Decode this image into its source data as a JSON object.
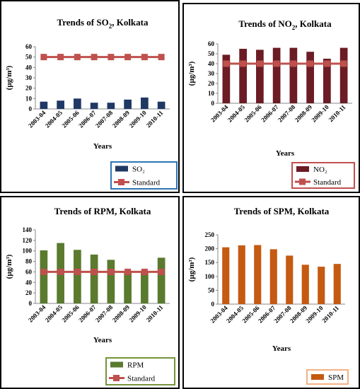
{
  "chart_data": [
    {
      "type": "bar",
      "title": "Trends of SO",
      "title_sub": "2",
      "title_suffix": ", Kolkata",
      "xlabel": "Years",
      "ylabel": "(µg/m³)",
      "ylim": [
        0,
        60
      ],
      "yticks": [
        0,
        10,
        20,
        30,
        40,
        50,
        60
      ],
      "categories": [
        "2003-04",
        "2004-05",
        "2005-06",
        "2006-07",
        "2007-08",
        "2008-09",
        "2009-10",
        "2010-11"
      ],
      "series": [
        {
          "name": "SO₂",
          "kind": "bar",
          "color": "#1f3864",
          "values": [
            7,
            8,
            10,
            6,
            6,
            9,
            11,
            7
          ]
        },
        {
          "name": "Standard",
          "kind": "line",
          "color": "#c0504d",
          "values": [
            50,
            50,
            50,
            50,
            50,
            50,
            50,
            50
          ]
        }
      ],
      "legend_border": "#2e75b6",
      "legend_position": "bottom-right",
      "grid": false
    },
    {
      "type": "bar",
      "title": "Trends of NO",
      "title_sub": "2",
      "title_suffix": ", Kolkata",
      "xlabel": "Years",
      "ylabel": "(µg/m³)",
      "ylim": [
        0,
        60
      ],
      "yticks": [
        0,
        10,
        20,
        30,
        40,
        50,
        60
      ],
      "categories": [
        "2003-04",
        "2004-05",
        "2005-06",
        "2006-07",
        "2007-08",
        "2008-09",
        "2009-10",
        "2010-11"
      ],
      "series": [
        {
          "name": "NO₂",
          "kind": "bar",
          "color": "#6b1c24",
          "values": [
            49,
            55,
            54,
            56,
            56,
            52,
            45,
            56
          ]
        },
        {
          "name": "Standard",
          "kind": "line",
          "color": "#c0504d",
          "values": [
            40,
            40,
            40,
            40,
            40,
            40,
            40,
            40
          ]
        }
      ],
      "legend_border": "#c0504d",
      "legend_position": "bottom-right",
      "grid": false
    },
    {
      "type": "bar",
      "title": "Trends of RPM, Kolkata",
      "title_sub": "",
      "title_suffix": "",
      "xlabel": "Years",
      "ylabel": "(µg/m³)",
      "ylim": [
        0,
        140
      ],
      "yticks": [
        0,
        20,
        40,
        60,
        80,
        100,
        120,
        140
      ],
      "categories": [
        "2003-04",
        "2004-05",
        "2005-06",
        "2006-07",
        "2007-08",
        "2008-09",
        "2009-10",
        "2010-11"
      ],
      "series": [
        {
          "name": "RPM",
          "kind": "bar",
          "color": "#5a7a2e",
          "values": [
            101,
            115,
            102,
            93,
            83,
            60,
            62,
            87
          ]
        },
        {
          "name": "Standard",
          "kind": "line",
          "color": "#c0504d",
          "values": [
            60,
            60,
            60,
            60,
            60,
            60,
            60,
            60
          ]
        }
      ],
      "legend_border": "#76933c",
      "legend_position": "bottom-right",
      "grid": false
    },
    {
      "type": "bar",
      "title": "Trends of SPM, Kolkata",
      "title_sub": "",
      "title_suffix": "",
      "xlabel": "Years",
      "ylabel": "(µg/m³)",
      "ylim": [
        0,
        250
      ],
      "yticks": [
        0,
        50,
        100,
        150,
        200,
        250
      ],
      "categories": [
        "2003-04",
        "2004-05",
        "2005-06",
        "2006-07",
        "2007-08",
        "2008-09",
        "2009-10",
        "2010-11"
      ],
      "series": [
        {
          "name": "SPM",
          "kind": "bar",
          "color": "#c55a11",
          "values": [
            205,
            212,
            213,
            198,
            175,
            142,
            135,
            145
          ]
        }
      ],
      "legend_border": "#f4b183",
      "legend_position": "bottom-right",
      "grid": false
    }
  ]
}
